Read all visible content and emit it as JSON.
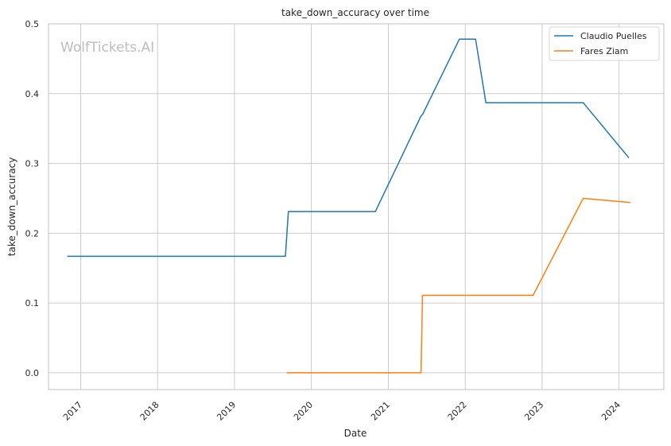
{
  "watermark": "WolfTickets.AI",
  "colors": {
    "background": "#ffffff",
    "grid": "#cccccc",
    "spine": "#cccccc",
    "claudio": "#1f77b4",
    "fares": "#ff7f0e"
  },
  "chart_data": {
    "type": "line",
    "title": "take_down_accuracy over time",
    "xlabel": "Date",
    "ylabel": "take_down_accuracy",
    "x_type": "date",
    "xlim": [
      "2016-08-01",
      "2024-08-01"
    ],
    "ylim": [
      -0.024,
      0.5
    ],
    "x_ticks": [
      "2017",
      "2018",
      "2019",
      "2020",
      "2021",
      "2022",
      "2023",
      "2024"
    ],
    "y_ticks": [
      "0.0",
      "0.1",
      "0.2",
      "0.3",
      "0.4",
      "0.5"
    ],
    "grid": true,
    "legend_position": "top-right",
    "series": [
      {
        "name": "Claudio Puelles",
        "color": "#1f77b4",
        "points": [
          [
            "2016-10-29",
            0.167
          ],
          [
            "2019-08-31",
            0.167
          ],
          [
            "2019-09-14",
            0.231
          ],
          [
            "2020-10-31",
            0.231
          ],
          [
            "2021-06-05",
            0.368
          ],
          [
            "2021-06-12",
            0.37
          ],
          [
            "2021-12-04",
            0.478
          ],
          [
            "2022-02-19",
            0.478
          ],
          [
            "2022-04-09",
            0.387
          ],
          [
            "2023-07-15",
            0.387
          ],
          [
            "2024-02-17",
            0.308
          ]
        ]
      },
      {
        "name": "Fares Ziam",
        "color": "#ff7f0e",
        "points": [
          [
            "2019-09-07",
            0.0
          ],
          [
            "2021-06-05",
            0.0
          ],
          [
            "2021-06-12",
            0.111
          ],
          [
            "2022-11-19",
            0.111
          ],
          [
            "2023-07-15",
            0.25
          ],
          [
            "2024-02-24",
            0.244
          ]
        ]
      }
    ]
  }
}
